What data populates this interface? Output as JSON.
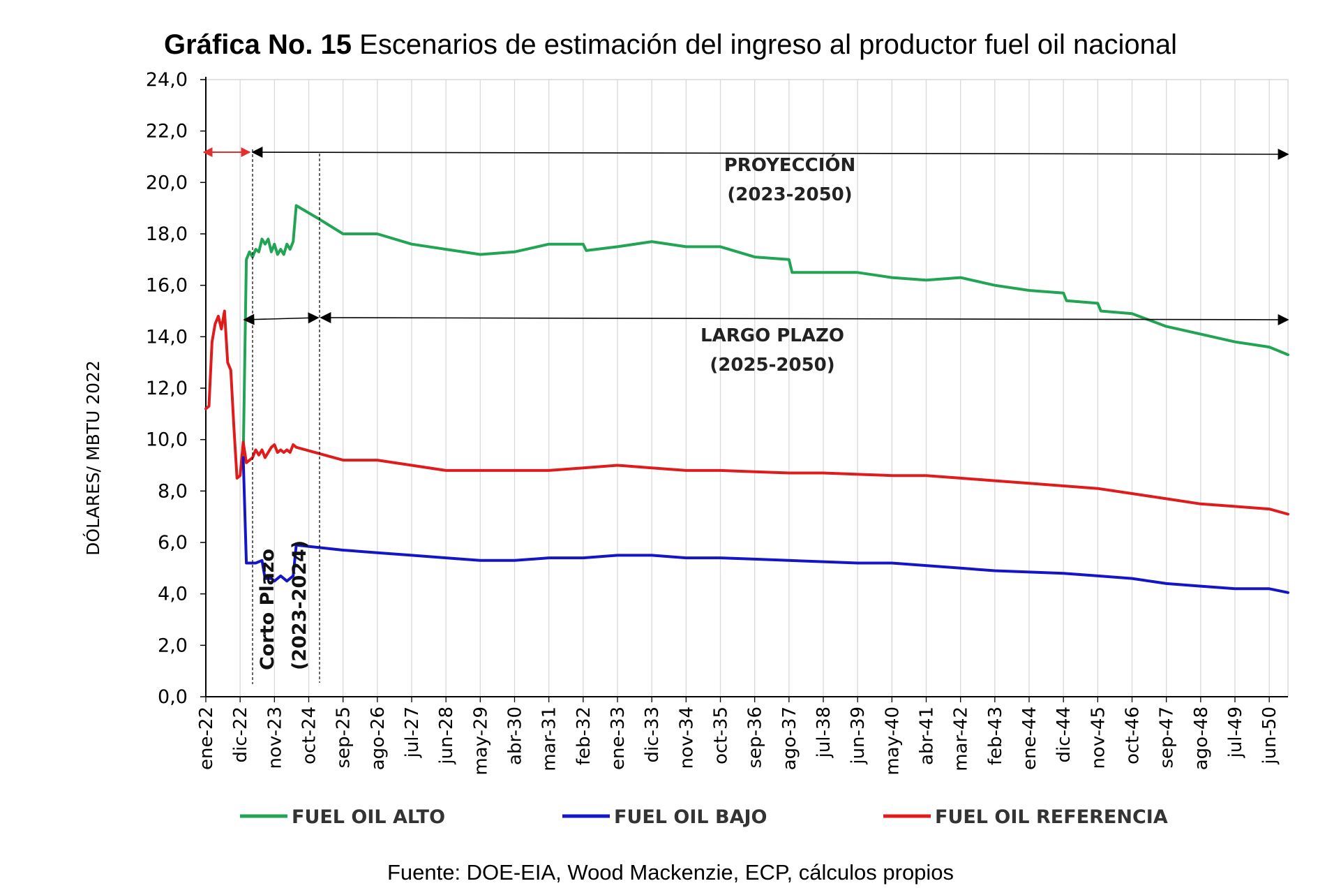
{
  "chart_data": {
    "type": "line",
    "title_prefix": "Gráfica No. 15",
    "title_rest": " Escenarios de estimación del ingreso al productor fuel oil nacional",
    "ylabel": "DÓLARES/ MBTU 2022",
    "ylim": [
      0,
      24
    ],
    "yticks": [
      "0,0",
      "2,0",
      "4,0",
      "6,0",
      "8,0",
      "10,0",
      "12,0",
      "14,0",
      "16,0",
      "18,0",
      "20,0",
      "22,0",
      "24,0"
    ],
    "xlim": [
      "ene-22",
      "dic-50"
    ],
    "xticks": [
      "ene-22",
      "dic-22",
      "nov-23",
      "oct-24",
      "sep-25",
      "ago-26",
      "jul-27",
      "jun-28",
      "may-29",
      "abr-30",
      "mar-31",
      "feb-32",
      "ene-33",
      "dic-33",
      "nov-34",
      "oct-35",
      "sep-36",
      "ago-37",
      "jul-38",
      "jun-39",
      "may-40",
      "abr-41",
      "mar-42",
      "feb-43",
      "ene-44",
      "dic-44",
      "nov-45",
      "oct-46",
      "sep-47",
      "ago-48",
      "jul-49",
      "jun-50"
    ],
    "grid": "vertical",
    "legend_position": "bottom",
    "series": [
      {
        "name": "FUEL OIL ALTO",
        "color": "#22a455",
        "points": [
          [
            "jan-23",
            9.3
          ],
          [
            "feb-23",
            17.0
          ],
          [
            "mar-23",
            17.3
          ],
          [
            "apr-23",
            17.1
          ],
          [
            "may-23",
            17.4
          ],
          [
            "jun-23",
            17.3
          ],
          [
            "jul-23",
            17.8
          ],
          [
            "aug-23",
            17.6
          ],
          [
            "sep-23",
            17.8
          ],
          [
            "oct-23",
            17.3
          ],
          [
            "nov-23",
            17.6
          ],
          [
            "dec-23",
            17.2
          ],
          [
            "jan-24",
            17.4
          ],
          [
            "feb-24",
            17.2
          ],
          [
            "mar-24",
            17.6
          ],
          [
            "apr-24",
            17.4
          ],
          [
            "may-24",
            17.7
          ],
          [
            "jun-24",
            19.1
          ],
          [
            "jan-25",
            18.6
          ],
          [
            "sep-25",
            18.0
          ],
          [
            "ago-26",
            18.0
          ],
          [
            "jul-27",
            17.6
          ],
          [
            "jun-28",
            17.4
          ],
          [
            "may-29",
            17.2
          ],
          [
            "abr-30",
            17.3
          ],
          [
            "mar-31",
            17.6
          ],
          [
            "feb-32",
            17.6
          ],
          [
            "mar-32",
            17.35
          ],
          [
            "ene-33",
            17.5
          ],
          [
            "dic-33",
            17.7
          ],
          [
            "nov-34",
            17.5
          ],
          [
            "oct-35",
            17.5
          ],
          [
            "sep-36",
            17.1
          ],
          [
            "ago-37",
            17.0
          ],
          [
            "sep-37",
            16.5
          ],
          [
            "jul-38",
            16.5
          ],
          [
            "jun-39",
            16.5
          ],
          [
            "may-40",
            16.3
          ],
          [
            "abr-41",
            16.2
          ],
          [
            "mar-42",
            16.3
          ],
          [
            "feb-43",
            16.0
          ],
          [
            "ene-44",
            15.8
          ],
          [
            "dic-44",
            15.7
          ],
          [
            "ene-45",
            15.4
          ],
          [
            "nov-45",
            15.3
          ],
          [
            "dic-45",
            15.0
          ],
          [
            "oct-46",
            14.9
          ],
          [
            "sep-47",
            14.4
          ],
          [
            "ago-48",
            14.1
          ],
          [
            "jul-49",
            13.8
          ],
          [
            "jun-50",
            13.6
          ],
          [
            "dic-50",
            13.3
          ]
        ]
      },
      {
        "name": "FUEL OIL BAJO",
        "color": "#1515c8",
        "points": [
          [
            "jan-23",
            9.3
          ],
          [
            "feb-23",
            5.2
          ],
          [
            "may-23",
            5.2
          ],
          [
            "jul-23",
            5.3
          ],
          [
            "aug-23",
            4.6
          ],
          [
            "oct-23",
            4.6
          ],
          [
            "nov-23",
            4.5
          ],
          [
            "jan-24",
            4.7
          ],
          [
            "mar-24",
            4.5
          ],
          [
            "may-24",
            4.7
          ],
          [
            "jun-24",
            5.9
          ],
          [
            "sep-25",
            5.7
          ],
          [
            "ago-26",
            5.6
          ],
          [
            "jul-27",
            5.5
          ],
          [
            "jun-28",
            5.4
          ],
          [
            "may-29",
            5.3
          ],
          [
            "abr-30",
            5.3
          ],
          [
            "mar-31",
            5.4
          ],
          [
            "feb-32",
            5.4
          ],
          [
            "ene-33",
            5.5
          ],
          [
            "dic-33",
            5.5
          ],
          [
            "nov-34",
            5.4
          ],
          [
            "oct-35",
            5.4
          ],
          [
            "sep-36",
            5.35
          ],
          [
            "ago-37",
            5.3
          ],
          [
            "jul-38",
            5.25
          ],
          [
            "jun-39",
            5.2
          ],
          [
            "may-40",
            5.2
          ],
          [
            "abr-41",
            5.1
          ],
          [
            "mar-42",
            5.0
          ],
          [
            "feb-43",
            4.9
          ],
          [
            "ene-44",
            4.85
          ],
          [
            "dic-44",
            4.8
          ],
          [
            "nov-45",
            4.7
          ],
          [
            "oct-46",
            4.6
          ],
          [
            "sep-47",
            4.4
          ],
          [
            "ago-48",
            4.3
          ],
          [
            "jul-49",
            4.2
          ],
          [
            "jun-50",
            4.2
          ],
          [
            "dic-50",
            4.05
          ]
        ]
      },
      {
        "name": "FUEL OIL REFERENCIA",
        "color": "#e01b1b",
        "points": [
          [
            "ene-22",
            11.2
          ],
          [
            "feb-22",
            11.3
          ],
          [
            "mar-22",
            13.8
          ],
          [
            "apr-22",
            14.5
          ],
          [
            "may-22",
            14.8
          ],
          [
            "jun-22",
            14.3
          ],
          [
            "jul-22",
            15.0
          ],
          [
            "aug-22",
            13.0
          ],
          [
            "sep-22",
            12.7
          ],
          [
            "oct-22",
            10.5
          ],
          [
            "nov-22",
            8.5
          ],
          [
            "dec-22",
            8.6
          ],
          [
            "jan-23",
            9.9
          ],
          [
            "feb-23",
            9.1
          ],
          [
            "mar-23",
            9.2
          ],
          [
            "apr-23",
            9.3
          ],
          [
            "may-23",
            9.6
          ],
          [
            "jun-23",
            9.4
          ],
          [
            "jul-23",
            9.6
          ],
          [
            "aug-23",
            9.3
          ],
          [
            "sep-23",
            9.5
          ],
          [
            "oct-23",
            9.7
          ],
          [
            "nov-23",
            9.8
          ],
          [
            "dec-23",
            9.5
          ],
          [
            "jan-24",
            9.6
          ],
          [
            "feb-24",
            9.5
          ],
          [
            "mar-24",
            9.6
          ],
          [
            "apr-24",
            9.5
          ],
          [
            "may-24",
            9.8
          ],
          [
            "jun-24",
            9.7
          ],
          [
            "sep-25",
            9.2
          ],
          [
            "ago-26",
            9.2
          ],
          [
            "jul-27",
            9.0
          ],
          [
            "jun-28",
            8.8
          ],
          [
            "may-29",
            8.8
          ],
          [
            "abr-30",
            8.8
          ],
          [
            "mar-31",
            8.8
          ],
          [
            "feb-32",
            8.9
          ],
          [
            "ene-33",
            9.0
          ],
          [
            "dic-33",
            8.9
          ],
          [
            "nov-34",
            8.8
          ],
          [
            "oct-35",
            8.8
          ],
          [
            "sep-36",
            8.75
          ],
          [
            "ago-37",
            8.7
          ],
          [
            "jul-38",
            8.7
          ],
          [
            "jun-39",
            8.65
          ],
          [
            "may-40",
            8.6
          ],
          [
            "abr-41",
            8.6
          ],
          [
            "mar-42",
            8.5
          ],
          [
            "feb-43",
            8.4
          ],
          [
            "ene-44",
            8.3
          ],
          [
            "dic-44",
            8.2
          ],
          [
            "nov-45",
            8.1
          ],
          [
            "oct-46",
            7.9
          ],
          [
            "sep-47",
            7.7
          ],
          [
            "ago-48",
            7.5
          ],
          [
            "jul-49",
            7.4
          ],
          [
            "jun-50",
            7.3
          ],
          [
            "dic-50",
            7.1
          ]
        ]
      }
    ],
    "annotations": {
      "proyeccion_label": "PROYECCIÓN",
      "proyeccion_range": "(2023-2050)",
      "largo_plazo_label": "LARGO PLAZO",
      "largo_plazo_range": "(2025-2050)",
      "corto_plazo_label": "Corto Plazo",
      "corto_plazo_range": "(2023-2024)"
    },
    "source": "Fuente: DOE-EIA, Wood Mackenzie, ECP, cálculos propios"
  }
}
